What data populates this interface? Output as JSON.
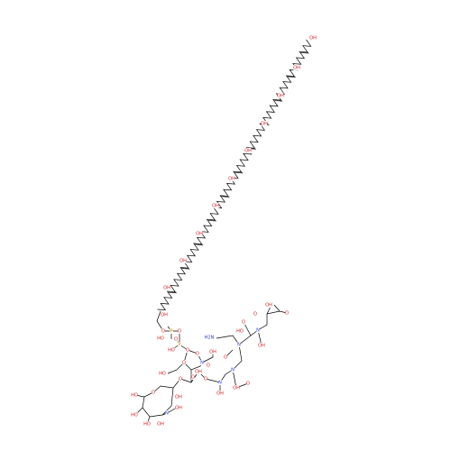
{
  "labels": [
    "OH",
    "OH",
    "OH",
    "OH",
    "OH",
    "OH",
    "OH",
    "OH",
    "OH",
    "OH",
    "OH",
    "O",
    "P",
    "O",
    "HO",
    "O",
    "P",
    "HO",
    "O",
    "O",
    "O",
    "N",
    "OH",
    "HO",
    "O",
    "OH",
    "O",
    "HO",
    "HO",
    "HO",
    "OH",
    "N",
    "OH",
    "O",
    "OH",
    "O",
    "N",
    "OH",
    "O",
    "O",
    "N",
    "OH",
    "O",
    "H2N",
    "N",
    "HO",
    "O",
    "N",
    "OH",
    "O",
    "OH",
    "O"
  ]
}
